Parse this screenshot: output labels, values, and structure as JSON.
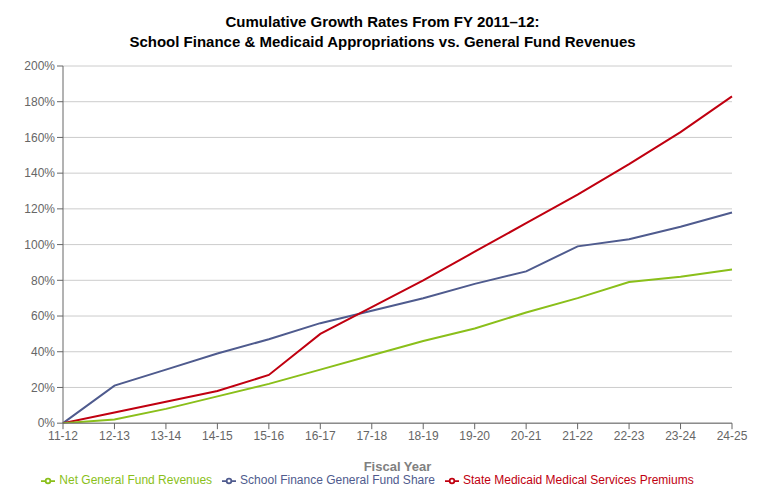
{
  "chart_data": {
    "type": "line",
    "title": "Cumulative Growth Rates From FY 2011–12:\nSchool Finance & Medicaid Appropriations vs. General Fund Revenues",
    "x_label": "Fiscal Year",
    "categories": [
      "11-12",
      "12-13",
      "13-14",
      "14-15",
      "15-16",
      "16-17",
      "17-18",
      "18-19",
      "19-20",
      "20-21",
      "21-22",
      "22-23",
      "23-24",
      "24-25"
    ],
    "series": [
      {
        "name": "School Finance General Fund Share",
        "color": "#4f5b8e",
        "values": [
          0,
          0.21,
          0.3,
          0.39,
          0.47,
          0.56,
          0.63,
          0.7,
          0.78,
          0.85,
          0.99,
          1.03,
          1.1,
          1.18
        ]
      },
      {
        "name": "State Medicaid Medical Services Premiums",
        "color": "#c00010",
        "values": [
          0,
          0.06,
          0.12,
          0.18,
          0.27,
          0.5,
          0.65,
          0.8,
          0.96,
          1.12,
          1.28,
          1.45,
          1.63,
          1.83
        ]
      },
      {
        "name": "Net General Fund Revenues",
        "color": "#8abf1a",
        "values": [
          0,
          0.02,
          0.08,
          0.15,
          0.22,
          0.3,
          0.38,
          0.46,
          0.53,
          0.62,
          0.7,
          0.79,
          0.82,
          0.86
        ]
      }
    ],
    "ylim": [
      0,
      2.0
    ],
    "yticks": [
      {
        "value": 0.0,
        "label": "0%"
      },
      {
        "value": 0.2,
        "label": "20%"
      },
      {
        "value": 0.4,
        "label": "40%"
      },
      {
        "value": 0.6,
        "label": "60%"
      },
      {
        "value": 0.8,
        "label": "80%"
      },
      {
        "value": 1.0,
        "label": "100%"
      },
      {
        "value": 1.2,
        "label": "120%"
      },
      {
        "value": 1.4,
        "label": "140%"
      },
      {
        "value": 1.6,
        "label": "160%"
      },
      {
        "value": 1.8,
        "label": "180%"
      },
      {
        "value": 2.0,
        "label": "200%"
      }
    ],
    "grid": true,
    "legend": "bottom"
  }
}
